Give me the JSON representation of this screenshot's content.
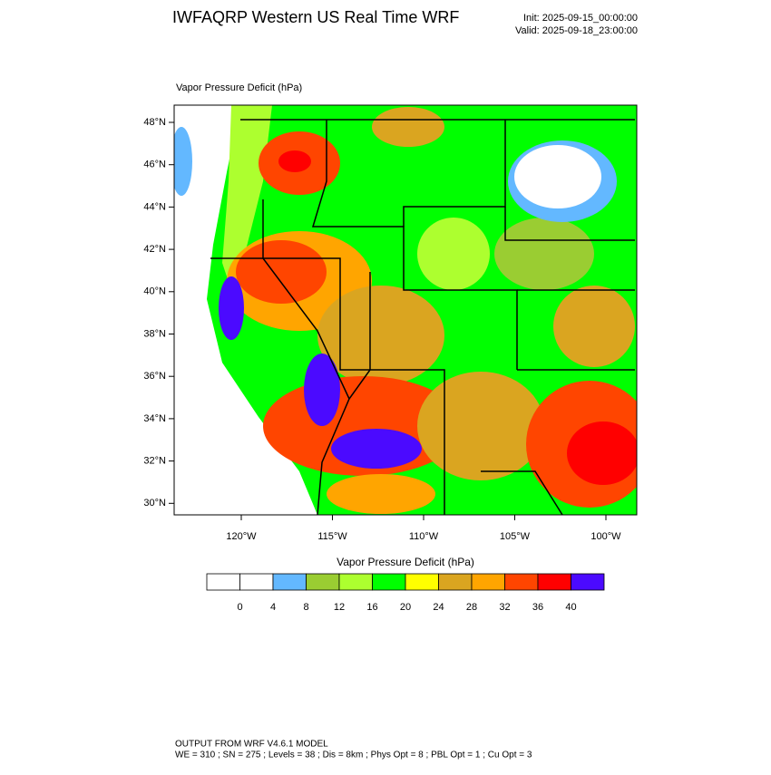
{
  "header": {
    "title": "IWFAQRP Western US Real Time WRF",
    "init": "Init: 2025-09-15_00:00:00",
    "valid": "Valid: 2025-09-18_23:00:00"
  },
  "map": {
    "label": "Vapor Pressure Deficit   (hPa)",
    "lat_labels": [
      "48°N",
      "46°N",
      "44°N",
      "42°N",
      "40°N",
      "38°N",
      "36°N",
      "34°N",
      "32°N",
      "30°N"
    ],
    "lon_labels": [
      "120°W",
      "115°W",
      "110°W",
      "105°W",
      "100°W"
    ]
  },
  "colorbar": {
    "title": "Vapor Pressure Deficit  (hPa)",
    "ticks": [
      0,
      4,
      8,
      12,
      16,
      20,
      24,
      28,
      32,
      36,
      40
    ],
    "colors": [
      "#ffffff",
      "#ffffff",
      "#63b8ff",
      "#9acd32",
      "#adff2f",
      "#00ff00",
      "#ffff00",
      "#daa520",
      "#ffa500",
      "#ff4500",
      "#ff0000",
      "#4b0aff"
    ]
  },
  "footer": {
    "line1": "OUTPUT FROM WRF V4.6.1 MODEL",
    "line2": "WE = 310 ; SN = 275 ; Levels = 38 ; Dis = 8km ; Phys Opt = 8 ; PBL Opt = 1 ; Cu Opt = 3"
  }
}
